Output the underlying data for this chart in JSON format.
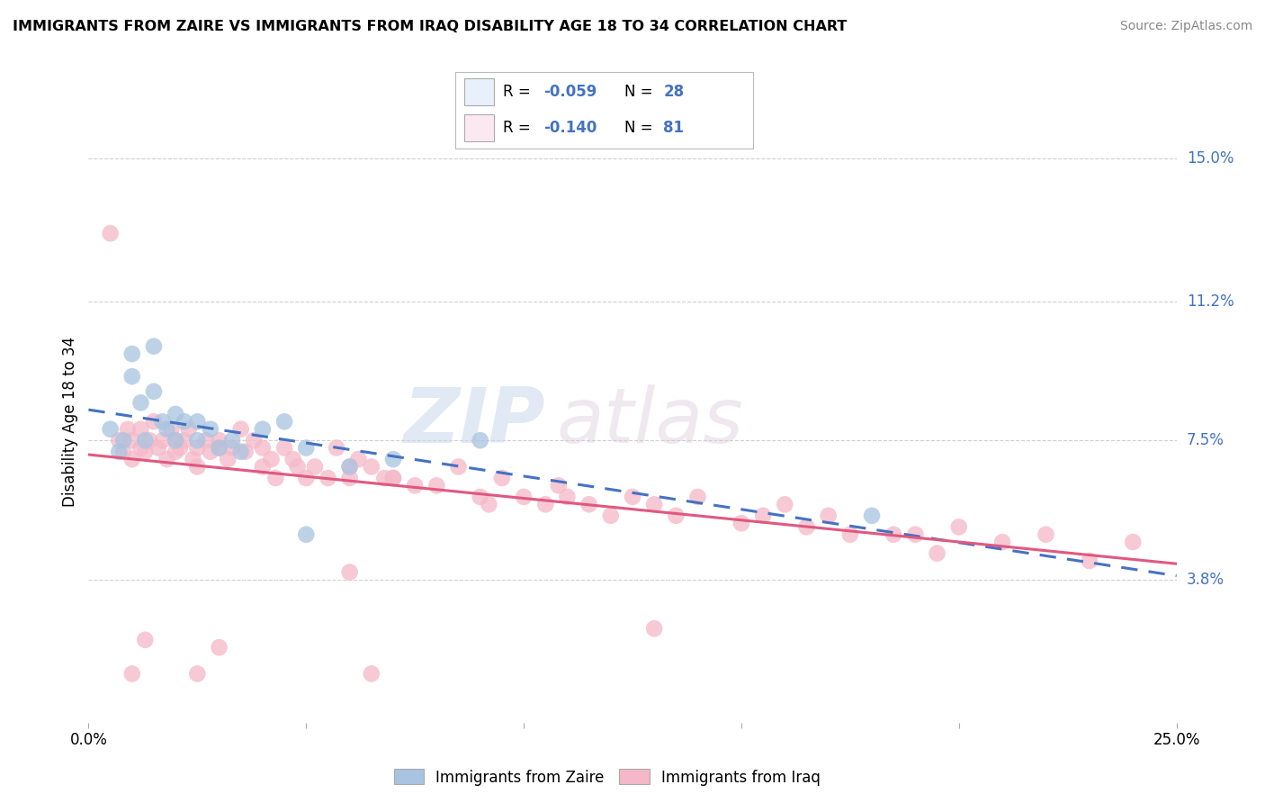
{
  "title": "IMMIGRANTS FROM ZAIRE VS IMMIGRANTS FROM IRAQ DISABILITY AGE 18 TO 34 CORRELATION CHART",
  "source": "Source: ZipAtlas.com",
  "ylabel": "Disability Age 18 to 34",
  "xlim": [
    0.0,
    0.25
  ],
  "ylim": [
    0.0,
    0.16
  ],
  "ytick_labels_right": [
    "15.0%",
    "11.2%",
    "7.5%",
    "3.8%"
  ],
  "ytick_vals_right": [
    0.15,
    0.112,
    0.075,
    0.038
  ],
  "watermark_zip": "ZIP",
  "watermark_atlas": "atlas",
  "zaire_R": "-0.059",
  "zaire_N": "28",
  "iraq_R": "-0.140",
  "iraq_N": "81",
  "zaire_color": "#a8c4e0",
  "iraq_color": "#f5b8c8",
  "zaire_line_color": "#4472c4",
  "iraq_line_color": "#e05880",
  "background_color": "#ffffff",
  "grid_color": "#d0d0d0",
  "legend_box_color": "#e8f0fc",
  "legend_iraq_box": "#fce8f0",
  "zaire_x": [
    0.005,
    0.007,
    0.008,
    0.01,
    0.01,
    0.012,
    0.013,
    0.015,
    0.015,
    0.017,
    0.018,
    0.02,
    0.02,
    0.022,
    0.025,
    0.025,
    0.028,
    0.03,
    0.033,
    0.035,
    0.04,
    0.045,
    0.05,
    0.06,
    0.07,
    0.09,
    0.18,
    0.05
  ],
  "zaire_y": [
    0.078,
    0.072,
    0.075,
    0.092,
    0.098,
    0.085,
    0.075,
    0.1,
    0.088,
    0.08,
    0.078,
    0.075,
    0.082,
    0.08,
    0.08,
    0.075,
    0.078,
    0.073,
    0.075,
    0.072,
    0.078,
    0.08,
    0.073,
    0.068,
    0.07,
    0.075,
    0.055,
    0.05
  ],
  "iraq_x": [
    0.005,
    0.007,
    0.008,
    0.009,
    0.01,
    0.01,
    0.012,
    0.012,
    0.013,
    0.014,
    0.015,
    0.016,
    0.017,
    0.018,
    0.019,
    0.02,
    0.02,
    0.021,
    0.022,
    0.023,
    0.024,
    0.025,
    0.025,
    0.027,
    0.028,
    0.03,
    0.03,
    0.032,
    0.033,
    0.035,
    0.036,
    0.038,
    0.04,
    0.04,
    0.042,
    0.043,
    0.045,
    0.047,
    0.048,
    0.05,
    0.052,
    0.055,
    0.057,
    0.06,
    0.06,
    0.062,
    0.065,
    0.068,
    0.07,
    0.075,
    0.08,
    0.085,
    0.09,
    0.092,
    0.095,
    0.1,
    0.105,
    0.108,
    0.11,
    0.115,
    0.12,
    0.125,
    0.13,
    0.135,
    0.14,
    0.15,
    0.155,
    0.16,
    0.165,
    0.17,
    0.175,
    0.185,
    0.19,
    0.195,
    0.2,
    0.21,
    0.22,
    0.23,
    0.24,
    0.06,
    0.07
  ],
  "iraq_y": [
    0.13,
    0.075,
    0.072,
    0.078,
    0.075,
    0.07,
    0.073,
    0.078,
    0.072,
    0.075,
    0.08,
    0.073,
    0.075,
    0.07,
    0.078,
    0.072,
    0.075,
    0.073,
    0.075,
    0.078,
    0.07,
    0.073,
    0.068,
    0.075,
    0.072,
    0.073,
    0.075,
    0.07,
    0.073,
    0.078,
    0.072,
    0.075,
    0.068,
    0.073,
    0.07,
    0.065,
    0.073,
    0.07,
    0.068,
    0.065,
    0.068,
    0.065,
    0.073,
    0.068,
    0.065,
    0.07,
    0.068,
    0.065,
    0.065,
    0.063,
    0.063,
    0.068,
    0.06,
    0.058,
    0.065,
    0.06,
    0.058,
    0.063,
    0.06,
    0.058,
    0.055,
    0.06,
    0.058,
    0.055,
    0.06,
    0.053,
    0.055,
    0.058,
    0.052,
    0.055,
    0.05,
    0.05,
    0.05,
    0.045,
    0.052,
    0.048,
    0.05,
    0.043,
    0.048,
    0.04,
    0.065
  ],
  "iraq_outlier_x": [
    0.01,
    0.013,
    0.025,
    0.03,
    0.065,
    0.13
  ],
  "iraq_outlier_y": [
    0.013,
    0.022,
    0.013,
    0.02,
    0.013,
    0.025
  ]
}
